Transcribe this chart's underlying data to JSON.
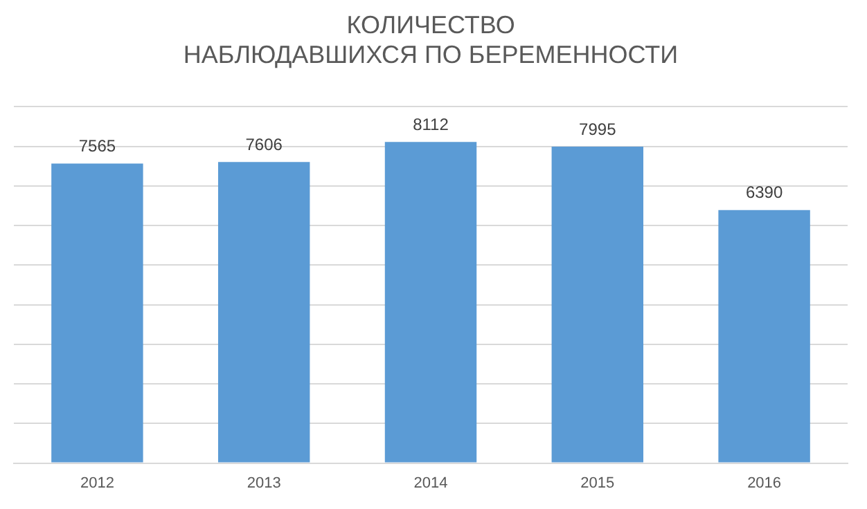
{
  "chart_data": {
    "type": "bar",
    "title": "КОЛИЧЕСТВО\nНАБЛЮДАВШИХСЯ ПО БЕРЕМЕННОСТИ",
    "categories": [
      "2012",
      "2013",
      "2014",
      "2015",
      "2016"
    ],
    "values": [
      7565,
      7606,
      8112,
      7995,
      6390
    ],
    "color": "#5b9bd5",
    "ylim": [
      0,
      9000
    ],
    "yticks": [
      {
        "value": 0,
        "label": null
      },
      {
        "value": 1000,
        "label": null
      },
      {
        "value": 2000,
        "label": null
      },
      {
        "value": 3000,
        "label": null
      },
      {
        "value": 4000,
        "label": null
      },
      {
        "value": 5000,
        "label": null
      },
      {
        "value": 6000,
        "label": null
      },
      {
        "value": 7000,
        "label": null
      },
      {
        "value": 8000,
        "label": null
      },
      {
        "value": 9000,
        "label": null
      }
    ],
    "grid": "y",
    "tick_labels": "x",
    "data_labels": true
  }
}
